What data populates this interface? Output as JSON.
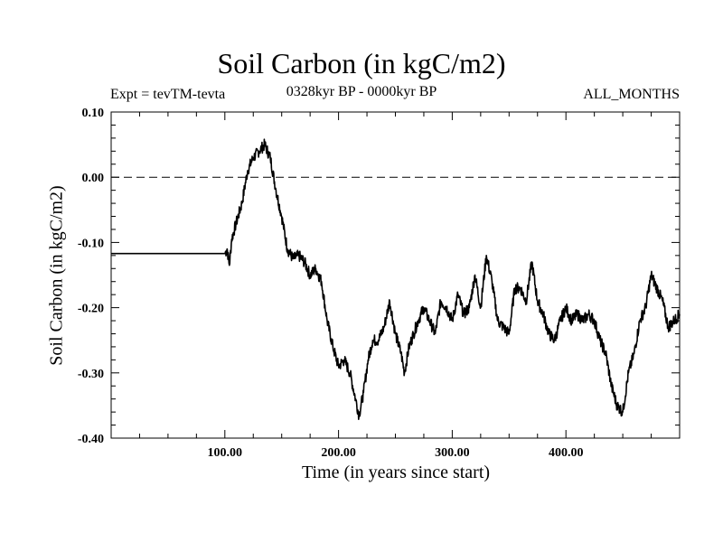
{
  "chart_data": {
    "type": "line",
    "title": "Soil Carbon (in kgC/m2)",
    "subtitle_left": "Expt = tevTM-tevta",
    "subtitle_center": "0328kyr BP - 0000kyr BP",
    "subtitle_right": "ALL_MONTHS",
    "xlabel": "Time (in years since start)",
    "ylabel": "Soil Carbon (in kgC/m2)",
    "xlim": [
      0,
      500
    ],
    "ylim": [
      -0.4,
      0.1
    ],
    "x_ticks": [
      100,
      200,
      300,
      400
    ],
    "x_tick_labels": [
      "100.00",
      "200.00",
      "300.00",
      "400.00"
    ],
    "y_ticks": [
      0.1,
      0.0,
      -0.1,
      -0.2,
      -0.3,
      -0.4
    ],
    "y_tick_labels": [
      "0.10",
      "0.00",
      "-0.10",
      "-0.20",
      "-0.30",
      "-0.40"
    ],
    "reference_line": {
      "y": 0.0,
      "style": "dashed"
    },
    "grid": false,
    "series": [
      {
        "color": "#000000",
        "x": [
          0,
          100,
          102,
          104,
          106,
          110,
          115,
          120,
          125,
          130,
          135,
          140,
          145,
          150,
          155,
          160,
          165,
          170,
          175,
          180,
          185,
          190,
          195,
          200,
          205,
          210,
          215,
          218,
          222,
          226,
          230,
          235,
          240,
          245,
          250,
          255,
          258,
          262,
          266,
          270,
          275,
          280,
          285,
          290,
          295,
          300,
          305,
          310,
          315,
          320,
          325,
          330,
          335,
          340,
          345,
          350,
          355,
          360,
          365,
          370,
          375,
          380,
          385,
          390,
          395,
          400,
          405,
          410,
          415,
          420,
          425,
          430,
          435,
          440,
          445,
          450,
          455,
          460,
          465,
          470,
          475,
          480,
          485,
          490,
          495,
          500
        ],
        "y": [
          -0.117,
          -0.117,
          -0.11,
          -0.135,
          -0.095,
          -0.07,
          -0.04,
          0.01,
          0.03,
          0.04,
          0.05,
          0.03,
          -0.02,
          -0.06,
          -0.11,
          -0.125,
          -0.12,
          -0.13,
          -0.15,
          -0.14,
          -0.16,
          -0.22,
          -0.26,
          -0.29,
          -0.28,
          -0.3,
          -0.34,
          -0.365,
          -0.33,
          -0.28,
          -0.25,
          -0.25,
          -0.23,
          -0.19,
          -0.24,
          -0.27,
          -0.3,
          -0.26,
          -0.24,
          -0.22,
          -0.2,
          -0.22,
          -0.24,
          -0.19,
          -0.2,
          -0.22,
          -0.18,
          -0.21,
          -0.2,
          -0.15,
          -0.2,
          -0.12,
          -0.16,
          -0.22,
          -0.23,
          -0.24,
          -0.17,
          -0.17,
          -0.19,
          -0.13,
          -0.19,
          -0.21,
          -0.24,
          -0.25,
          -0.22,
          -0.2,
          -0.22,
          -0.21,
          -0.22,
          -0.21,
          -0.22,
          -0.25,
          -0.27,
          -0.32,
          -0.35,
          -0.36,
          -0.3,
          -0.27,
          -0.22,
          -0.2,
          -0.15,
          -0.17,
          -0.19,
          -0.23,
          -0.22,
          -0.21
        ]
      }
    ]
  }
}
